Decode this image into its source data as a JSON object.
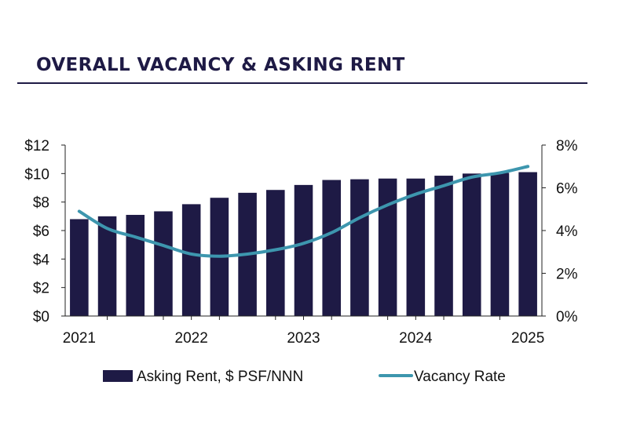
{
  "title": "OVERALL VACANCY & ASKING RENT",
  "colors": {
    "title": "#1e1a45",
    "bar": "#1e1a45",
    "line": "#3d96ae",
    "axis": "#222222"
  },
  "chart_data": {
    "type": "bar",
    "title": "OVERALL VACANCY & ASKING RENT",
    "x_tick_labels": [
      "2021",
      "2022",
      "2023",
      "2024",
      "2025"
    ],
    "y_left_tick_labels": [
      "$0",
      "$2",
      "$4",
      "$6",
      "$8",
      "$10",
      "$12"
    ],
    "y_right_tick_labels": [
      "0%",
      "2%",
      "4%",
      "6%",
      "8%"
    ],
    "ylim_left": [
      0,
      12
    ],
    "ylim_right": [
      0,
      8
    ],
    "grid": false,
    "legend_position": "bottom",
    "periods": [
      "2021 Q1",
      "2021 Q2",
      "2021 Q3",
      "2021 Q4",
      "2022 Q1",
      "2022 Q2",
      "2022 Q3",
      "2022 Q4",
      "2023 Q1",
      "2023 Q2",
      "2023 Q3",
      "2023 Q4",
      "2024 Q1",
      "2024 Q2",
      "2024 Q3",
      "2024 Q4",
      "2025 Q1"
    ],
    "series": [
      {
        "name": "Asking Rent, $ PSF/NNN",
        "type": "bar",
        "axis": "left",
        "values": [
          6.8,
          7.0,
          7.1,
          7.35,
          7.85,
          8.3,
          8.65,
          8.85,
          9.2,
          9.55,
          9.6,
          9.65,
          9.65,
          9.85,
          10.0,
          10.05,
          10.1
        ]
      },
      {
        "name": "Vacancy Rate",
        "type": "line",
        "axis": "right",
        "values": [
          4.9,
          4.1,
          3.7,
          3.3,
          2.9,
          2.8,
          2.9,
          3.1,
          3.4,
          3.9,
          4.6,
          5.2,
          5.7,
          6.1,
          6.5,
          6.7,
          7.0
        ]
      }
    ]
  }
}
